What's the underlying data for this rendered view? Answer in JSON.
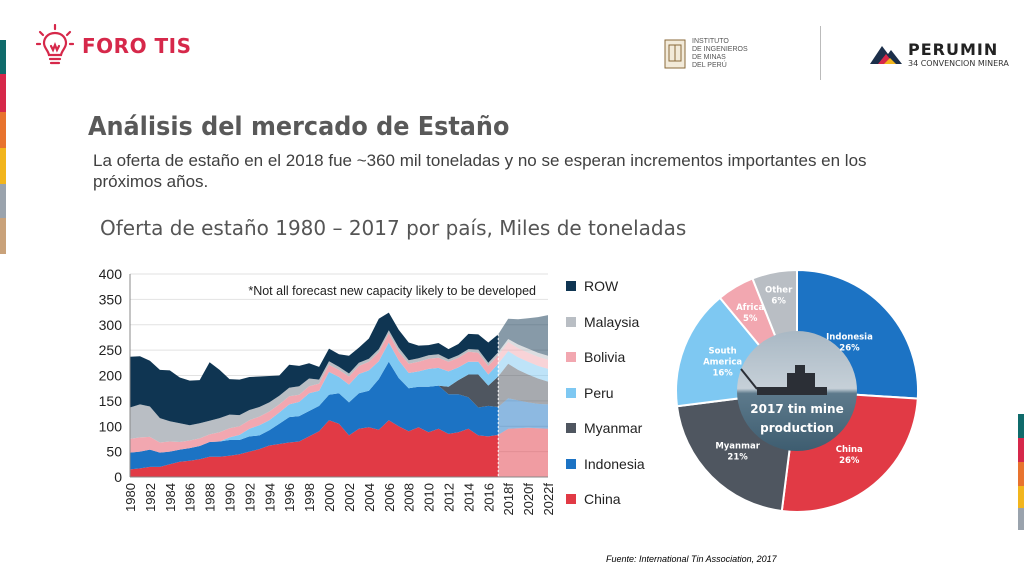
{
  "header": {
    "brand": "FORO TIS",
    "institute_lines": "INSTITUTO\nDE INGENIEROS\nDE MINAS\nDEL PERÚ",
    "event_name": "PERUMIN",
    "event_sub": "34 CONVENCION MINERA"
  },
  "slide": {
    "title": "Análisis del mercado de Estaño",
    "subtitle": "La oferta de estaño en el 2018 fue ~360 mil toneladas y no se esperan incrementos importantes en los próximos años.",
    "chart_heading": "Oferta de estaño 1980 – 2017 por país, Miles de toneladas",
    "source": "Fuente: International Tin Association, 2017"
  },
  "colors": {
    "brand": "#d6284a",
    "ROW": "#0f3552",
    "Malaysia": "#b9bec4",
    "Bolivia": "#f2a7b0",
    "Peru": "#7ec8f2",
    "Myanmar": "#4f5660",
    "Indonesia": "#1c73c4",
    "China": "#e13a45"
  },
  "chart_data": [
    {
      "type": "area",
      "stacked": true,
      "annotation": "*Not all forecast new capacity likely to be developed",
      "ylim": [
        0,
        400
      ],
      "y_ticks": [
        "0",
        "50",
        "100",
        "150",
        "200",
        "250",
        "300",
        "350",
        "400"
      ],
      "x_tick_labels": [
        "1980",
        "1982",
        "1984",
        "1986",
        "1988",
        "1990",
        "1992",
        "1994",
        "1996",
        "1998",
        "2000",
        "2002",
        "2004",
        "2006",
        "2008",
        "2010",
        "2012",
        "2014",
        "2016",
        "2018f",
        "2020f",
        "2022f"
      ],
      "x": [
        "1980",
        "1981",
        "1982",
        "1983",
        "1984",
        "1985",
        "1986",
        "1987",
        "1988",
        "1989",
        "1990",
        "1991",
        "1992",
        "1993",
        "1994",
        "1995",
        "1996",
        "1997",
        "1998",
        "1999",
        "2000",
        "2001",
        "2002",
        "2003",
        "2004",
        "2005",
        "2006",
        "2007",
        "2008",
        "2009",
        "2010",
        "2011",
        "2012",
        "2013",
        "2014",
        "2015",
        "2016",
        "2017",
        "2018f",
        "2019f",
        "2020f",
        "2021f",
        "2022f"
      ],
      "forecast_start": "2018f",
      "grid": true,
      "legend": "right",
      "series": [
        {
          "name": "China",
          "values": [
            15,
            17,
            20,
            20,
            25,
            30,
            32,
            35,
            40,
            40,
            42,
            45,
            50,
            55,
            62,
            65,
            68,
            70,
            80,
            90,
            112,
            105,
            82,
            95,
            98,
            93,
            112,
            100,
            90,
            98,
            88,
            95,
            85,
            88,
            95,
            82,
            80,
            83,
            95,
            96,
            97,
            96,
            95
          ]
        },
        {
          "name": "Indonesia",
          "values": [
            33,
            33,
            34,
            28,
            25,
            24,
            25,
            26,
            29,
            30,
            31,
            28,
            30,
            27,
            30,
            40,
            50,
            50,
            50,
            50,
            50,
            60,
            65,
            70,
            72,
            100,
            115,
            95,
            85,
            80,
            90,
            85,
            78,
            75,
            62,
            55,
            60,
            55,
            60,
            55,
            50,
            48,
            48
          ]
        },
        {
          "name": "Myanmar",
          "values": [
            0,
            0,
            0,
            0,
            0,
            0,
            0,
            0,
            0,
            0,
            0,
            0,
            0,
            0,
            0,
            0,
            0,
            0,
            0,
            0,
            0,
            0,
            0,
            0,
            0,
            0,
            0,
            0,
            0,
            0,
            0,
            0,
            15,
            28,
            45,
            65,
            40,
            60,
            68,
            60,
            55,
            50,
            45
          ]
        },
        {
          "name": "Peru",
          "values": [
            0,
            0,
            0,
            0,
            0,
            0,
            0,
            0,
            0,
            0,
            5,
            10,
            15,
            20,
            20,
            22,
            25,
            28,
            35,
            30,
            45,
            32,
            35,
            38,
            40,
            35,
            38,
            35,
            30,
            30,
            35,
            35,
            30,
            25,
            25,
            25,
            22,
            25,
            25,
            25,
            25,
            25,
            25
          ]
        },
        {
          "name": "Bolivia",
          "values": [
            27,
            28,
            25,
            20,
            20,
            15,
            15,
            15,
            15,
            18,
            18,
            17,
            17,
            17,
            17,
            16,
            16,
            14,
            14,
            14,
            14,
            14,
            16,
            16,
            17,
            18,
            18,
            17,
            18,
            19,
            20,
            20,
            19,
            19,
            20,
            18,
            17,
            17,
            18,
            18,
            18,
            18,
            18
          ]
        },
        {
          "name": "Malaysia",
          "values": [
            62,
            65,
            60,
            48,
            40,
            37,
            30,
            30,
            27,
            28,
            27,
            22,
            20,
            19,
            18,
            17,
            17,
            17,
            15,
            8,
            7,
            6,
            6,
            6,
            6,
            6,
            6,
            8,
            7,
            7,
            7,
            7,
            5,
            5,
            5,
            6,
            6,
            6,
            6,
            7,
            8,
            8,
            8
          ]
        },
        {
          "name": "ROW",
          "values": [
            100,
            95,
            90,
            95,
            100,
            90,
            88,
            85,
            115,
            95,
            70,
            70,
            65,
            60,
            52,
            40,
            45,
            40,
            30,
            25,
            25,
            25,
            35,
            30,
            40,
            60,
            35,
            35,
            35,
            25,
            20,
            22,
            20,
            22,
            30,
            30,
            40,
            35,
            40,
            50,
            60,
            70,
            80
          ]
        }
      ]
    },
    {
      "type": "pie",
      "center_label": "2017 tin mine production",
      "slices": [
        {
          "name": "Indonesia",
          "value": 26,
          "label": "Indonesia",
          "pct": "26%"
        },
        {
          "name": "China",
          "value": 26,
          "label": "China",
          "pct": "26%"
        },
        {
          "name": "Myanmar",
          "value": 21,
          "label": "Myanmar",
          "pct": "21%"
        },
        {
          "name": "South America",
          "value": 16,
          "label": "South America",
          "pct": "16%"
        },
        {
          "name": "Africa",
          "value": 5,
          "label": "Africa",
          "pct": "5%"
        },
        {
          "name": "Other",
          "value": 6,
          "label": "Other",
          "pct": "6%"
        }
      ],
      "slice_colors": [
        "#1c73c4",
        "#e13a45",
        "#4f5660",
        "#7ec8f2",
        "#f2a7b0",
        "#b9bec4"
      ]
    }
  ]
}
